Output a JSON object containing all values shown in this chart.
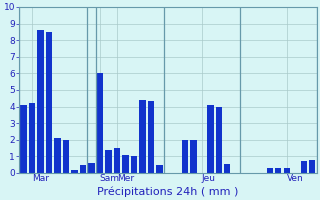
{
  "xlabel": "Précipitations 24h ( mm )",
  "bar_color": "#1133cc",
  "background_color": "#d8f5f5",
  "grid_color": "#aacaca",
  "separator_color": "#6699aa",
  "ylim": [
    0,
    10
  ],
  "yticks": [
    0,
    1,
    2,
    3,
    4,
    5,
    6,
    7,
    8,
    9,
    10
  ],
  "values": [
    4.1,
    4.2,
    8.6,
    8.5,
    2.1,
    2.0,
    0.15,
    0.5,
    0.6,
    6.0,
    1.4,
    1.5,
    1.05,
    1.0,
    4.4,
    4.35,
    0.5,
    0.0,
    0.0,
    2.0,
    2.0,
    0.0,
    4.1,
    4.0,
    0.55,
    0.0,
    0.0,
    0.0,
    0.0,
    0.3,
    0.3,
    0.3,
    0.0,
    0.7,
    0.8
  ],
  "day_labels": [
    "Mar",
    "Sam",
    "Mer",
    "Jeu",
    "Ven"
  ],
  "day_tick_x": [
    1.0,
    9.0,
    11.0,
    21.0,
    31.0
  ],
  "day_sep_x": [
    -0.5,
    7.5,
    8.5,
    16.5,
    25.5,
    34.5
  ],
  "tick_color": "#2222bb",
  "xlabel_color": "#2222bb",
  "tick_fontsize": 6.5,
  "xlabel_fontsize": 8
}
